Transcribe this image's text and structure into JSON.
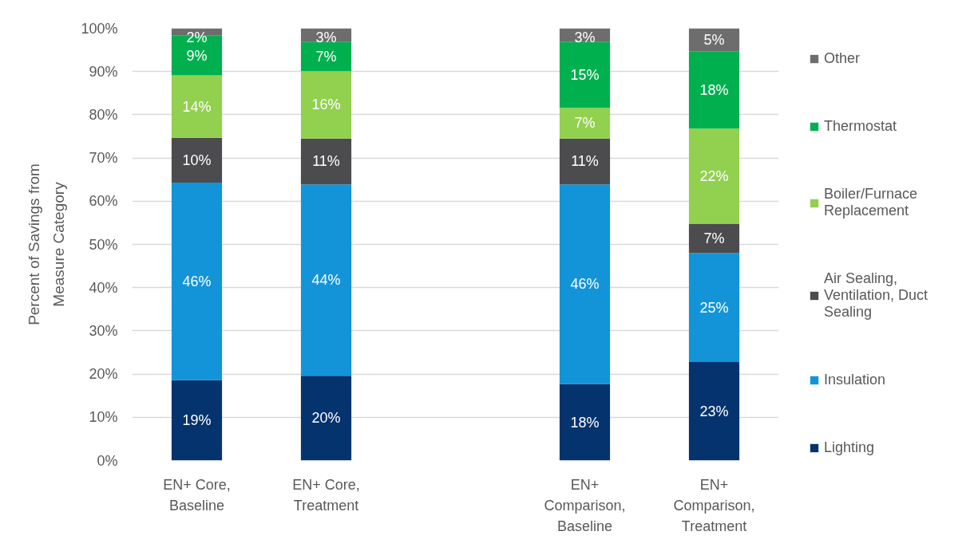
{
  "chart_data": {
    "type": "bar",
    "stacked": true,
    "ylabel": "Percent of Savings from Measure Category",
    "categories": [
      "EN+ Core, Baseline",
      "EN+ Core, Treatment",
      null,
      "EN+ Comparison, Baseline",
      "EN+ Comparison, Treatment"
    ],
    "ylim": [
      0,
      100
    ],
    "yticks": [
      {
        "value": 0,
        "label": "0%"
      },
      {
        "value": 10,
        "label": "10%"
      },
      {
        "value": 20,
        "label": "20%"
      },
      {
        "value": 30,
        "label": "30%"
      },
      {
        "value": 40,
        "label": "40%"
      },
      {
        "value": 50,
        "label": "50%"
      },
      {
        "value": 60,
        "label": "60%"
      },
      {
        "value": 70,
        "label": "70%"
      },
      {
        "value": 80,
        "label": "80%"
      },
      {
        "value": 90,
        "label": "90%"
      },
      {
        "value": 100,
        "label": "100%"
      }
    ],
    "grid": "y",
    "legend": "right",
    "series": [
      {
        "name": "Lighting",
        "color": "#05336e",
        "values": [
          18.6,
          19.6,
          null,
          17.7,
          22.8
        ],
        "value_labels": [
          "19%",
          "20%",
          null,
          "18%",
          "23%"
        ]
      },
      {
        "name": "Insulation",
        "color": "#1394d8",
        "values": [
          45.7,
          44.3,
          null,
          46.2,
          25.2
        ],
        "value_labels": [
          "46%",
          "44%",
          null,
          "46%",
          "25%"
        ]
      },
      {
        "name": "Air Sealing, Ventilation, Duct Sealing",
        "color": "#4c4c4e",
        "values": [
          10.4,
          10.6,
          null,
          10.6,
          6.8
        ],
        "value_labels": [
          "10%",
          "11%",
          null,
          "11%",
          "7%"
        ]
      },
      {
        "name": "Boiler/Furnace Replacement",
        "color": "#92d050",
        "values": [
          14.4,
          15.6,
          null,
          7.1,
          22.0
        ],
        "value_labels": [
          "14%",
          "16%",
          null,
          "7%",
          "22%"
        ]
      },
      {
        "name": "Thermostat",
        "color": "#00b04f",
        "values": [
          9.2,
          6.7,
          null,
          15.2,
          17.8
        ],
        "value_labels": [
          "9%",
          "7%",
          null,
          "15%",
          "18%"
        ]
      },
      {
        "name": "Other",
        "color": "#6d6d6d",
        "values": [
          1.7,
          3.2,
          null,
          3.2,
          5.4
        ],
        "value_labels": [
          "2%",
          "3%",
          null,
          "3%",
          "5%"
        ]
      }
    ]
  }
}
